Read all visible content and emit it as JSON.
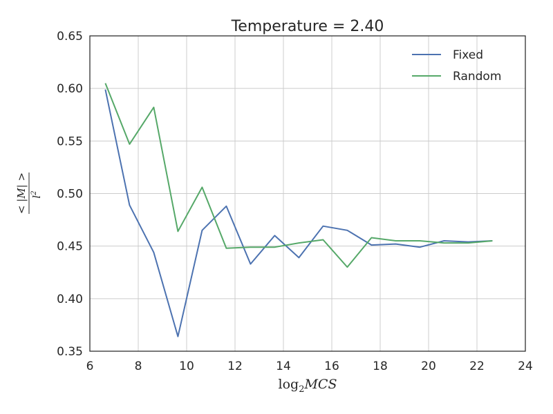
{
  "chart_data": {
    "type": "line",
    "title": "Temperature = 2.40",
    "xlabel": {
      "base": "log",
      "subscript": "2",
      "var": "MCS"
    },
    "ylabel": {
      "numerator": "< |M| >",
      "denominator_base": "l",
      "denominator_exp": "2"
    },
    "xlim": [
      6,
      24
    ],
    "ylim": [
      0.35,
      0.65
    ],
    "xticks": [
      6,
      8,
      10,
      12,
      14,
      16,
      18,
      20,
      22,
      24
    ],
    "xtick_labels": [
      "6",
      "8",
      "10",
      "12",
      "14",
      "16",
      "18",
      "20",
      "22",
      "24"
    ],
    "yticks": [
      0.35,
      0.4,
      0.45,
      0.5,
      0.55,
      0.6,
      0.65
    ],
    "ytick_labels": [
      "0.35",
      "0.40",
      "0.45",
      "0.50",
      "0.55",
      "0.60",
      "0.65"
    ],
    "grid": true,
    "legend_position": "top-right",
    "x": [
      6.64,
      7.64,
      8.64,
      9.64,
      10.64,
      11.64,
      12.64,
      13.64,
      14.64,
      15.64,
      16.64,
      17.64,
      18.64,
      19.64,
      20.64,
      21.64,
      22.64
    ],
    "series": [
      {
        "name": "Fixed",
        "color": "#4c72b0",
        "values": [
          0.599,
          0.489,
          0.444,
          0.364,
          0.465,
          0.488,
          0.433,
          0.46,
          0.439,
          0.469,
          0.465,
          0.451,
          0.452,
          0.449,
          0.455,
          0.454,
          0.455
        ]
      },
      {
        "name": "Random",
        "color": "#55a868",
        "values": [
          0.605,
          0.547,
          0.582,
          0.464,
          0.506,
          0.448,
          0.449,
          0.449,
          0.453,
          0.456,
          0.43,
          0.458,
          0.455,
          0.455,
          0.453,
          0.453,
          0.455
        ]
      }
    ]
  }
}
